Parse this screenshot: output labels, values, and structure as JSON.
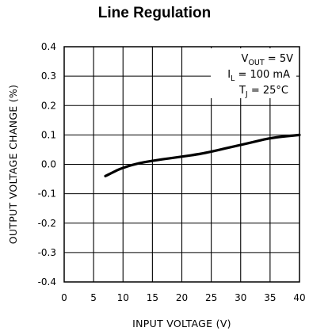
{
  "chart_data": {
    "type": "line",
    "title": "Line Regulation",
    "xlabel": "INPUT VOLTAGE (V)",
    "ylabel": "OUTPUT VOLTAGE CHANGE (%)",
    "xlim": [
      0,
      40
    ],
    "ylim": [
      -0.4,
      0.4
    ],
    "grid": true,
    "x_ticks": [
      "0",
      "5",
      "10",
      "15",
      "20",
      "25",
      "30",
      "35",
      "40"
    ],
    "y_ticks": [
      "0.4",
      "0.3",
      "0.2",
      "0.1",
      "0.0",
      "-0.1",
      "-0.2",
      "-0.3",
      "-0.4"
    ],
    "series": [
      {
        "x": [
          7,
          8,
          9,
          10,
          11,
          12,
          13,
          15,
          17,
          20,
          23,
          25,
          28,
          30,
          33,
          35,
          37,
          40
        ],
        "y": [
          -0.04,
          -0.03,
          -0.02,
          -0.012,
          -0.005,
          0.0,
          0.005,
          0.012,
          0.018,
          0.026,
          0.035,
          0.043,
          0.057,
          0.066,
          0.08,
          0.089,
          0.094,
          0.1
        ]
      }
    ],
    "annotations": [
      {
        "base": "V",
        "sub": "OUT",
        "rest": " = 5V"
      },
      {
        "base": "I",
        "sub": "L",
        "rest": " = 100 mA"
      },
      {
        "base": "T",
        "sub": "J",
        "rest": " = 25°C"
      }
    ]
  }
}
